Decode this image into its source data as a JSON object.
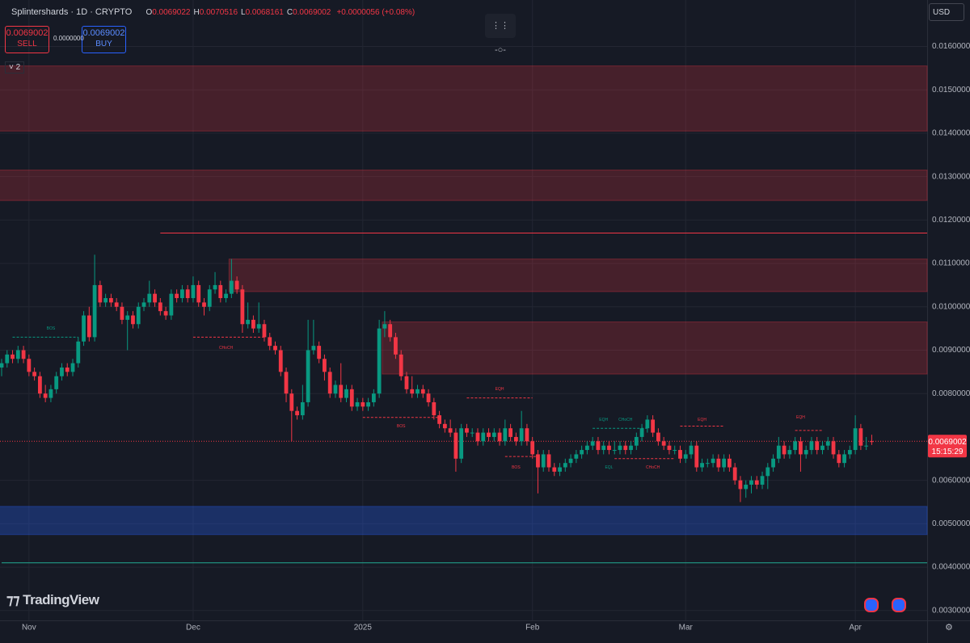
{
  "header": {
    "symbol": "Splintershards · 1D · CRYPTO",
    "ohlc": [
      {
        "label": "O",
        "value": "0.0069022"
      },
      {
        "label": "H",
        "value": "0.0070516"
      },
      {
        "label": "L",
        "value": "0.0068161"
      },
      {
        "label": "C",
        "value": "0.0069002"
      }
    ],
    "change": "+0.0000056 (+0.08%)",
    "sell_price": "0.0069002",
    "sell": "SELL",
    "spread": "0.0000000",
    "buy_price": "0.0069002",
    "buy": "BUY",
    "indicators": "2",
    "currency": "USD",
    "logo": "TradingView"
  },
  "chart_data": {
    "type": "candlestick",
    "up_color": "#089981",
    "down_color": "#f23645",
    "grid": true,
    "ylim": [
      0.002773,
      0.01707
    ],
    "yticks": [
      {
        "value": 0.003,
        "label": "0.0030000"
      },
      {
        "value": 0.004,
        "label": "0.0040000"
      },
      {
        "value": 0.005,
        "label": "0.0050000"
      },
      {
        "value": 0.006,
        "label": "0.0060000"
      },
      {
        "value": 0.008,
        "label": "0.0080000"
      },
      {
        "value": 0.009,
        "label": "0.0090000"
      },
      {
        "value": 0.01,
        "label": "0.0100000"
      },
      {
        "value": 0.011,
        "label": "0.0110000"
      },
      {
        "value": 0.012,
        "label": "0.0120000"
      },
      {
        "value": 0.013,
        "label": "0.0130000"
      },
      {
        "value": 0.014,
        "label": "0.0140000"
      },
      {
        "value": 0.015,
        "label": "0.0150000"
      },
      {
        "value": 0.016,
        "label": "0.0160000"
      }
    ],
    "last_price": {
      "value": 0.0069002,
      "label": "0.0069002"
    },
    "countdown": "15:15:29",
    "categories": [
      null,
      null,
      null,
      null,
      null,
      "Nov",
      null,
      null,
      null,
      null,
      null,
      null,
      null,
      null,
      null,
      null,
      null,
      null,
      null,
      null,
      null,
      null,
      null,
      null,
      null,
      null,
      null,
      null,
      null,
      null,
      null,
      null,
      null,
      null,
      null,
      "Dec",
      null,
      null,
      null,
      null,
      null,
      null,
      null,
      null,
      null,
      null,
      null,
      null,
      null,
      null,
      null,
      null,
      null,
      null,
      null,
      null,
      null,
      null,
      null,
      null,
      null,
      null,
      null,
      null,
      null,
      null,
      "2025",
      null,
      null,
      null,
      null,
      null,
      null,
      null,
      null,
      null,
      null,
      null,
      null,
      null,
      null,
      null,
      null,
      null,
      null,
      null,
      null,
      null,
      null,
      null,
      null,
      null,
      null,
      null,
      null,
      null,
      null,
      "Feb",
      null,
      null,
      null,
      null,
      null,
      null,
      null,
      null,
      null,
      null,
      null,
      null,
      null,
      null,
      null,
      null,
      null,
      null,
      null,
      null,
      null,
      null,
      null,
      null,
      null,
      null,
      null,
      "Mar",
      null,
      null,
      null,
      null,
      null,
      null,
      null,
      null,
      null,
      null,
      null,
      null,
      null,
      null,
      null,
      null,
      null,
      null,
      null,
      null,
      null,
      null,
      null,
      null,
      null,
      null,
      null,
      null,
      null,
      null,
      "Apr",
      null,
      null,
      null
    ],
    "candles": [
      [
        0.0086,
        0.0088,
        0.0084,
        0.0087
      ],
      [
        0.0087,
        0.009,
        0.0086,
        0.0089
      ],
      [
        0.0089,
        0.009,
        0.0087,
        0.0088
      ],
      [
        0.0088,
        0.0091,
        0.0087,
        0.009
      ],
      [
        0.009,
        0.0091,
        0.0087,
        0.0088
      ],
      [
        0.0088,
        0.0089,
        0.0084,
        0.0085
      ],
      [
        0.0085,
        0.0086,
        0.0083,
        0.0084
      ],
      [
        0.0084,
        0.0085,
        0.0079,
        0.008
      ],
      [
        0.008,
        0.0082,
        0.0078,
        0.0079
      ],
      [
        0.0079,
        0.0082,
        0.0078,
        0.0081
      ],
      [
        0.0081,
        0.0085,
        0.008,
        0.0084
      ],
      [
        0.0084,
        0.0087,
        0.0083,
        0.0086
      ],
      [
        0.0086,
        0.0087,
        0.0084,
        0.0085
      ],
      [
        0.0085,
        0.0088,
        0.0084,
        0.0087
      ],
      [
        0.0087,
        0.0093,
        0.0086,
        0.0092
      ],
      [
        0.0092,
        0.0099,
        0.0091,
        0.0098
      ],
      [
        0.0098,
        0.01,
        0.0092,
        0.0093
      ],
      [
        0.0093,
        0.0112,
        0.0092,
        0.0105
      ],
      [
        0.0105,
        0.0106,
        0.01,
        0.0101
      ],
      [
        0.0101,
        0.0103,
        0.01,
        0.0102
      ],
      [
        0.0102,
        0.0103,
        0.01,
        0.0101
      ],
      [
        0.0101,
        0.0102,
        0.0099,
        0.01
      ],
      [
        0.01,
        0.0101,
        0.0096,
        0.0097
      ],
      [
        0.0097,
        0.0099,
        0.009,
        0.0098
      ],
      [
        0.0098,
        0.0099,
        0.0095,
        0.0096
      ],
      [
        0.0096,
        0.0101,
        0.0095,
        0.01
      ],
      [
        0.01,
        0.0102,
        0.0099,
        0.0101
      ],
      [
        0.0101,
        0.0106,
        0.01,
        0.0103
      ],
      [
        0.0103,
        0.0104,
        0.01,
        0.0101
      ],
      [
        0.0101,
        0.0102,
        0.0098,
        0.0099
      ],
      [
        0.0099,
        0.01,
        0.0097,
        0.0098
      ],
      [
        0.0098,
        0.0104,
        0.0097,
        0.0103
      ],
      [
        0.0103,
        0.0104,
        0.0101,
        0.0102
      ],
      [
        0.0102,
        0.0105,
        0.0101,
        0.0104
      ],
      [
        0.0104,
        0.0105,
        0.0101,
        0.0102
      ],
      [
        0.0102,
        0.0107,
        0.0101,
        0.0105
      ],
      [
        0.0105,
        0.0106,
        0.01,
        0.0101
      ],
      [
        0.0101,
        0.0102,
        0.0098,
        0.01
      ],
      [
        0.01,
        0.0105,
        0.0099,
        0.0104
      ],
      [
        0.0104,
        0.0108,
        0.0103,
        0.0105
      ],
      [
        0.0105,
        0.0106,
        0.0101,
        0.0102
      ],
      [
        0.0102,
        0.0104,
        0.0101,
        0.0103
      ],
      [
        0.0103,
        0.0111,
        0.0102,
        0.0106
      ],
      [
        0.0106,
        0.0107,
        0.0103,
        0.0104
      ],
      [
        0.0104,
        0.0105,
        0.0094,
        0.0096
      ],
      [
        0.0096,
        0.0101,
        0.0095,
        0.0097
      ],
      [
        0.0097,
        0.0098,
        0.0094,
        0.0095
      ],
      [
        0.0095,
        0.0101,
        0.0094,
        0.0096
      ],
      [
        0.0096,
        0.0097,
        0.0092,
        0.0093
      ],
      [
        0.0093,
        0.0094,
        0.009,
        0.0091
      ],
      [
        0.0091,
        0.0092,
        0.0089,
        0.009
      ],
      [
        0.009,
        0.0091,
        0.0084,
        0.0085
      ],
      [
        0.0085,
        0.0086,
        0.0078,
        0.008
      ],
      [
        0.008,
        0.0081,
        0.0069,
        0.0076
      ],
      [
        0.0076,
        0.0077,
        0.0074,
        0.0075
      ],
      [
        0.0075,
        0.0082,
        0.0074,
        0.0078
      ],
      [
        0.0078,
        0.0097,
        0.0077,
        0.009
      ],
      [
        0.009,
        0.0097,
        0.0089,
        0.0091
      ],
      [
        0.0091,
        0.0092,
        0.0087,
        0.0088
      ],
      [
        0.0088,
        0.0089,
        0.0083,
        0.0085
      ],
      [
        0.0085,
        0.0086,
        0.0079,
        0.008
      ],
      [
        0.008,
        0.0083,
        0.0079,
        0.0082
      ],
      [
        0.0082,
        0.0087,
        0.0078,
        0.0079
      ],
      [
        0.0079,
        0.0082,
        0.0078,
        0.0081
      ],
      [
        0.0081,
        0.0082,
        0.0076,
        0.0077
      ],
      [
        0.0077,
        0.0079,
        0.0076,
        0.0078
      ],
      [
        0.0078,
        0.0079,
        0.0076,
        0.0077
      ],
      [
        0.0077,
        0.0079,
        0.0076,
        0.0078
      ],
      [
        0.0078,
        0.0081,
        0.0077,
        0.008
      ],
      [
        0.008,
        0.0097,
        0.0079,
        0.0095
      ],
      [
        0.0095,
        0.0099,
        0.0093,
        0.0096
      ],
      [
        0.0096,
        0.0097,
        0.0092,
        0.0093
      ],
      [
        0.0093,
        0.0094,
        0.0088,
        0.0089
      ],
      [
        0.0089,
        0.009,
        0.0083,
        0.0084
      ],
      [
        0.0084,
        0.0085,
        0.008,
        0.0081
      ],
      [
        0.0081,
        0.0084,
        0.0079,
        0.008
      ],
      [
        0.008,
        0.0082,
        0.0079,
        0.0081
      ],
      [
        0.0081,
        0.0082,
        0.0079,
        0.008
      ],
      [
        0.008,
        0.0081,
        0.0077,
        0.0078
      ],
      [
        0.0078,
        0.0079,
        0.0074,
        0.0075
      ],
      [
        0.0075,
        0.0076,
        0.0072,
        0.0073
      ],
      [
        0.0073,
        0.0074,
        0.0071,
        0.0072
      ],
      [
        0.0072,
        0.0074,
        0.007,
        0.0071
      ],
      [
        0.0071,
        0.0072,
        0.0062,
        0.0065
      ],
      [
        0.0065,
        0.0073,
        0.0064,
        0.0072
      ],
      [
        0.0072,
        0.0073,
        0.007,
        0.0071
      ],
      [
        0.0071,
        0.0072,
        0.007,
        0.0071
      ],
      [
        0.0071,
        0.0072,
        0.0068,
        0.0069
      ],
      [
        0.0069,
        0.0072,
        0.0068,
        0.0071
      ],
      [
        0.0071,
        0.0072,
        0.0069,
        0.007
      ],
      [
        0.007,
        0.0072,
        0.0069,
        0.0071
      ],
      [
        0.0071,
        0.0072,
        0.0068,
        0.0069
      ],
      [
        0.0069,
        0.0074,
        0.0068,
        0.0072
      ],
      [
        0.0072,
        0.0073,
        0.0069,
        0.007
      ],
      [
        0.007,
        0.0071,
        0.0068,
        0.0069
      ],
      [
        0.0069,
        0.0076,
        0.0068,
        0.0072
      ],
      [
        0.0072,
        0.0073,
        0.0068,
        0.0069
      ],
      [
        0.0069,
        0.007,
        0.0065,
        0.0066
      ],
      [
        0.0066,
        0.0067,
        0.0057,
        0.0063
      ],
      [
        0.0063,
        0.0067,
        0.0062,
        0.0066
      ],
      [
        0.0066,
        0.0067,
        0.0062,
        0.0063
      ],
      [
        0.0063,
        0.0064,
        0.0061,
        0.0062
      ],
      [
        0.0062,
        0.0064,
        0.0061,
        0.0063
      ],
      [
        0.0063,
        0.0065,
        0.0062,
        0.0064
      ],
      [
        0.0064,
        0.0066,
        0.0063,
        0.0065
      ],
      [
        0.0065,
        0.0067,
        0.0064,
        0.0066
      ],
      [
        0.0066,
        0.0068,
        0.0065,
        0.0067
      ],
      [
        0.0067,
        0.0069,
        0.0066,
        0.0068
      ],
      [
        0.0068,
        0.007,
        0.0067,
        0.0069
      ],
      [
        0.0069,
        0.007,
        0.0066,
        0.0067
      ],
      [
        0.0067,
        0.0069,
        0.0066,
        0.0068
      ],
      [
        0.0068,
        0.0069,
        0.0066,
        0.0067
      ],
      [
        0.0067,
        0.0069,
        0.0066,
        0.0067
      ],
      [
        0.0067,
        0.0069,
        0.0066,
        0.0068
      ],
      [
        0.0068,
        0.0069,
        0.0066,
        0.0067
      ],
      [
        0.0067,
        0.0069,
        0.0066,
        0.0068
      ],
      [
        0.0068,
        0.0071,
        0.0067,
        0.007
      ],
      [
        0.007,
        0.0073,
        0.0069,
        0.0072
      ],
      [
        0.0072,
        0.0075,
        0.0071,
        0.0074
      ],
      [
        0.0074,
        0.0075,
        0.007,
        0.0071
      ],
      [
        0.0071,
        0.0072,
        0.0068,
        0.0069
      ],
      [
        0.0069,
        0.007,
        0.0067,
        0.0068
      ],
      [
        0.0068,
        0.0069,
        0.0066,
        0.0067
      ],
      [
        0.0067,
        0.0068,
        0.0066,
        0.0067
      ],
      [
        0.0067,
        0.0068,
        0.0064,
        0.0065
      ],
      [
        0.0065,
        0.0067,
        0.0064,
        0.0066
      ],
      [
        0.0066,
        0.0069,
        0.0065,
        0.0068
      ],
      [
        0.0068,
        0.0069,
        0.0062,
        0.0063
      ],
      [
        0.0063,
        0.0065,
        0.0062,
        0.0064
      ],
      [
        0.0064,
        0.0065,
        0.0063,
        0.0064
      ],
      [
        0.0064,
        0.0066,
        0.0063,
        0.0065
      ],
      [
        0.0065,
        0.0066,
        0.0062,
        0.0063
      ],
      [
        0.0063,
        0.0066,
        0.0062,
        0.0065
      ],
      [
        0.0065,
        0.0066,
        0.0062,
        0.0063
      ],
      [
        0.0063,
        0.0064,
        0.0059,
        0.006
      ],
      [
        0.006,
        0.0061,
        0.0055,
        0.0058
      ],
      [
        0.0058,
        0.006,
        0.0056,
        0.0059
      ],
      [
        0.0059,
        0.0061,
        0.0057,
        0.006
      ],
      [
        0.006,
        0.0061,
        0.0058,
        0.0059
      ],
      [
        0.0059,
        0.0062,
        0.0058,
        0.0061
      ],
      [
        0.0061,
        0.0064,
        0.0058,
        0.0063
      ],
      [
        0.0063,
        0.0066,
        0.0062,
        0.0065
      ],
      [
        0.0065,
        0.007,
        0.0064,
        0.0068
      ],
      [
        0.0068,
        0.0069,
        0.0065,
        0.0066
      ],
      [
        0.0066,
        0.0068,
        0.0065,
        0.0067
      ],
      [
        0.0067,
        0.007,
        0.0066,
        0.0069
      ],
      [
        0.0069,
        0.007,
        0.0062,
        0.0066
      ],
      [
        0.0066,
        0.0068,
        0.0065,
        0.0067
      ],
      [
        0.0067,
        0.007,
        0.0066,
        0.0069
      ],
      [
        0.0069,
        0.007,
        0.0066,
        0.0067
      ],
      [
        0.0067,
        0.0069,
        0.0066,
        0.0068
      ],
      [
        0.0068,
        0.007,
        0.0067,
        0.0069
      ],
      [
        0.0069,
        0.007,
        0.0065,
        0.0066
      ],
      [
        0.0066,
        0.0067,
        0.0063,
        0.0064
      ],
      [
        0.0064,
        0.0067,
        0.0063,
        0.0066
      ],
      [
        0.0066,
        0.0068,
        0.0065,
        0.0067
      ],
      [
        0.0067,
        0.0075,
        0.0066,
        0.0072
      ],
      [
        0.0072,
        0.0073,
        0.0067,
        0.0068
      ],
      [
        0.0068,
        0.007,
        0.0067,
        0.0068
      ],
      [
        0.0069022,
        0.0070516,
        0.0068161,
        0.0069002
      ]
    ],
    "zones": [
      {
        "low": 0.01405,
        "high": 0.01555,
        "from": 0,
        "color": "#f23645"
      },
      {
        "low": 0.01245,
        "high": 0.01315,
        "from": 0,
        "color": "#f23645"
      },
      {
        "low": 0.01035,
        "high": 0.0111,
        "from": 42,
        "color": "#f23645"
      },
      {
        "low": 0.00845,
        "high": 0.00965,
        "from": 70,
        "color": "#f23645"
      },
      {
        "low": 0.00475,
        "high": 0.0054,
        "from": 0,
        "color": "#2962ff"
      }
    ],
    "levels": [
      {
        "price": 0.0093,
        "from": 2,
        "to": 14,
        "color": "#089981",
        "dashed": true
      },
      {
        "price": 0.0093,
        "from": 35,
        "to": 48,
        "color": "#f23645",
        "dashed": true
      },
      {
        "price": 0.0117,
        "from": 29,
        "extend": true,
        "color": "#f23645",
        "dashed": false
      },
      {
        "price": 0.00745,
        "from": 66,
        "to": 80,
        "color": "#f23645",
        "dashed": true
      },
      {
        "price": 0.0079,
        "from": 85,
        "to": 97,
        "color": "#f23645",
        "dashed": true
      },
      {
        "price": 0.00655,
        "from": 92,
        "to": 98,
        "color": "#f23645",
        "dashed": true
      },
      {
        "price": 0.0072,
        "from": 108,
        "to": 118,
        "color": "#089981",
        "dashed": true
      },
      {
        "price": 0.0065,
        "from": 112,
        "to": 123,
        "color": "#f23645",
        "dashed": true
      },
      {
        "price": 0.00725,
        "from": 124,
        "to": 132,
        "color": "#f23645",
        "dashed": true
      },
      {
        "price": 0.00715,
        "from": 145,
        "to": 150,
        "color": "#f23645",
        "dashed": true
      },
      {
        "price": 0.0041,
        "from": 0,
        "extend": true,
        "color": "#22ab94",
        "dashed": false
      }
    ],
    "annotations": [
      {
        "text": "BOS",
        "index": 9,
        "price": 0.0095,
        "color": "#089981"
      },
      {
        "text": "CHoCH",
        "index": 41,
        "price": 0.00905,
        "color": "#f23645"
      },
      {
        "text": "BOS",
        "index": 73,
        "price": 0.00725,
        "color": "#f23645"
      },
      {
        "text": "EQH",
        "index": 91,
        "price": 0.0081,
        "color": "#f23645"
      },
      {
        "text": "BOS",
        "index": 94,
        "price": 0.0063,
        "color": "#f23645"
      },
      {
        "text": "EQH",
        "index": 110,
        "price": 0.0074,
        "color": "#089981"
      },
      {
        "text": "CHoCH",
        "index": 114,
        "price": 0.0074,
        "color": "#089981"
      },
      {
        "text": "EQL",
        "index": 111,
        "price": 0.0063,
        "color": "#089981"
      },
      {
        "text": "CHoCH",
        "index": 119,
        "price": 0.0063,
        "color": "#f23645"
      },
      {
        "text": "EQH",
        "index": 128,
        "price": 0.0074,
        "color": "#f23645"
      },
      {
        "text": "EQH",
        "index": 146,
        "price": 0.00745,
        "color": "#f23645"
      }
    ]
  }
}
